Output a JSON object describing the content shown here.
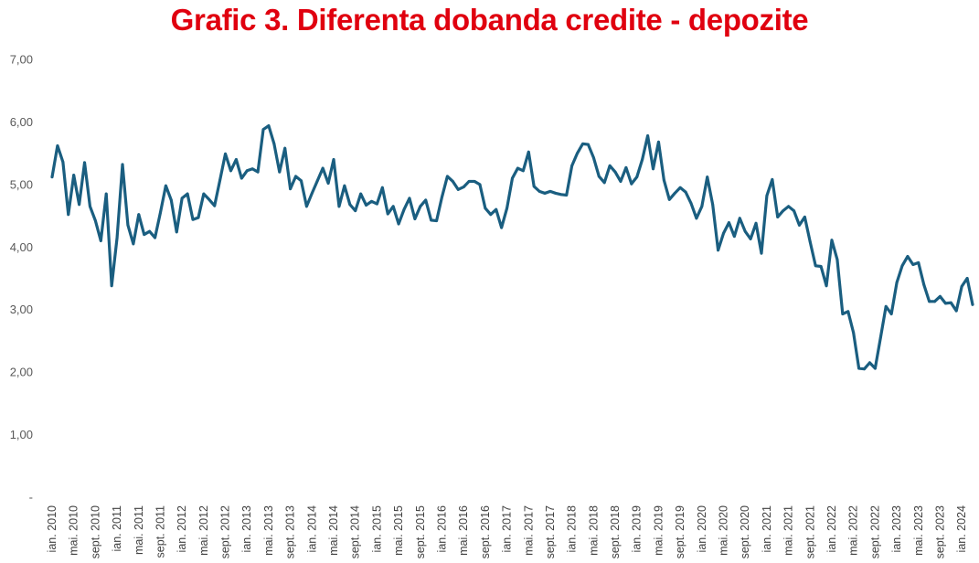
{
  "chart_data": {
    "type": "line",
    "title": "Grafic 3. Diferenta dobanda credite - depozite",
    "title_color": "#e0000f",
    "xlabel": "",
    "ylabel": "",
    "ylim": [
      0,
      7
    ],
    "y_ticks": [
      0,
      1,
      2,
      3,
      4,
      5,
      6,
      7
    ],
    "y_tick_labels": [
      "-",
      "1,00",
      "2,00",
      "3,00",
      "4,00",
      "5,00",
      "6,00",
      "7,00"
    ],
    "grid": false,
    "legend": "none",
    "x_start": "2010-01",
    "x_tick_labels": [
      "ian. 2010",
      "mai. 2010",
      "sept. 2010",
      "ian. 2011",
      "mai. 2011",
      "sept. 2011",
      "ian. 2012",
      "mai. 2012",
      "sept. 2012",
      "ian. 2013",
      "mai. 2013",
      "sept. 2013",
      "ian. 2014",
      "mai. 2014",
      "sept. 2014",
      "ian. 2015",
      "mai. 2015",
      "sept. 2015",
      "ian. 2016",
      "mai. 2016",
      "sept. 2016",
      "ian. 2017",
      "mai. 2017",
      "sept. 2017",
      "ian. 2018",
      "mai. 2018",
      "sept. 2018",
      "ian. 2019",
      "mai. 2019",
      "sept. 2019",
      "ian. 2020",
      "mai. 2020",
      "sept. 2020",
      "ian. 2021",
      "mai. 2021",
      "sept. 2021",
      "ian. 2022",
      "mai. 2022",
      "sept. 2022",
      "ian. 2023",
      "mai. 2023",
      "sept. 2023",
      "ian. 2024"
    ],
    "series": [
      {
        "color": "#1a5e80",
        "values": [
          5.12,
          5.62,
          5.36,
          4.52,
          5.15,
          4.68,
          5.35,
          4.65,
          4.42,
          4.1,
          4.85,
          3.38,
          4.15,
          5.32,
          4.35,
          4.05,
          4.52,
          4.2,
          4.25,
          4.15,
          4.55,
          4.98,
          4.75,
          4.24,
          4.78,
          4.85,
          4.44,
          4.47,
          4.85,
          4.76,
          4.66,
          5.07,
          5.49,
          5.22,
          5.4,
          5.1,
          5.22,
          5.25,
          5.2,
          5.88,
          5.94,
          5.65,
          5.2,
          5.58,
          4.93,
          5.13,
          5.06,
          4.65,
          4.86,
          5.06,
          5.26,
          5.02,
          5.4,
          4.65,
          4.98,
          4.68,
          4.58,
          4.85,
          4.67,
          4.73,
          4.69,
          4.95,
          4.53,
          4.65,
          4.37,
          4.6,
          4.78,
          4.45,
          4.65,
          4.75,
          4.43,
          4.42,
          4.8,
          5.13,
          5.05,
          4.92,
          4.96,
          5.05,
          5.05,
          5.0,
          4.62,
          4.52,
          4.6,
          4.31,
          4.62,
          5.1,
          5.26,
          5.22,
          5.52,
          4.97,
          4.89,
          4.86,
          4.89,
          4.86,
          4.84,
          4.83,
          5.3,
          5.5,
          5.65,
          5.64,
          5.43,
          5.13,
          5.03,
          5.3,
          5.2,
          5.05,
          5.27,
          5.01,
          5.12,
          5.4,
          5.78,
          5.25,
          5.68,
          5.07,
          4.76,
          4.86,
          4.95,
          4.88,
          4.7,
          4.46,
          4.65,
          5.12,
          4.68,
          3.95,
          4.22,
          4.39,
          4.17,
          4.46,
          4.25,
          4.13,
          4.38,
          3.9,
          4.82,
          5.08,
          4.48,
          4.58,
          4.65,
          4.58,
          4.35,
          4.48,
          4.08,
          3.7,
          3.69,
          3.38,
          4.11,
          3.8,
          2.93,
          2.97,
          2.63,
          2.06,
          2.05,
          2.15,
          2.06,
          2.55,
          3.05,
          2.93,
          3.43,
          3.7,
          3.85,
          3.72,
          3.75,
          3.4,
          3.13,
          3.13,
          3.21,
          3.1,
          3.11,
          2.98,
          3.37,
          3.5,
          3.08
        ]
      }
    ]
  }
}
